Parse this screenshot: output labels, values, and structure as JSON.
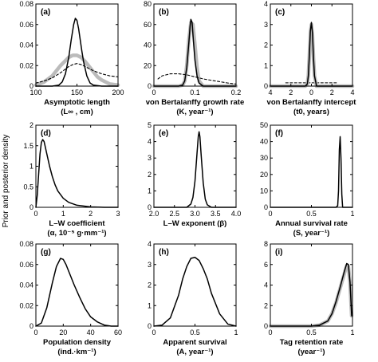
{
  "figure": {
    "ylabel": "Prior and posterior density"
  },
  "chart_data": [
    {
      "type": "line",
      "panel": "(a)",
      "xlabel_line1": "Asymptotic length",
      "xlabel_line2": "(L∞ , cm)",
      "xlim": [
        100,
        200
      ],
      "ylim": [
        0,
        0.08
      ],
      "xticks": [
        100,
        150,
        200
      ],
      "xtick_labels": [
        "100",
        "150",
        "200"
      ],
      "yticks": [
        0,
        0.02,
        0.04,
        0.06,
        0.08
      ],
      "ytick_labels": [
        "0",
        "0.02",
        "0.04",
        "0.06",
        "0.08"
      ],
      "series": [
        {
          "style": "posterior-gray",
          "x": [
            100,
            110,
            120,
            125,
            130,
            135,
            140,
            145,
            150,
            155,
            160,
            165,
            170,
            175,
            180,
            190,
            200
          ],
          "y": [
            0.001,
            0.004,
            0.01,
            0.015,
            0.02,
            0.024,
            0.028,
            0.03,
            0.03,
            0.028,
            0.024,
            0.019,
            0.014,
            0.009,
            0.006,
            0.002,
            0.001
          ]
        },
        {
          "style": "prior-dashed",
          "x": [
            100,
            110,
            120,
            130,
            140,
            145,
            150,
            155,
            160,
            170,
            180,
            190,
            200
          ],
          "y": [
            0.003,
            0.005,
            0.008,
            0.013,
            0.019,
            0.021,
            0.022,
            0.021,
            0.019,
            0.015,
            0.012,
            0.01,
            0.009
          ]
        },
        {
          "style": "posterior-black",
          "x": [
            100,
            120,
            128,
            132,
            136,
            140,
            143,
            146,
            148,
            150,
            152,
            154,
            156,
            158,
            162,
            166,
            170,
            180,
            200
          ],
          "y": [
            0,
            0,
            0.001,
            0.004,
            0.012,
            0.028,
            0.045,
            0.06,
            0.066,
            0.064,
            0.056,
            0.045,
            0.034,
            0.024,
            0.01,
            0.003,
            0.001,
            0,
            0
          ]
        }
      ]
    },
    {
      "type": "line",
      "panel": "(b)",
      "xlabel_line1": "von Bertalanffy growth rate",
      "xlabel_line2": "(K, year⁻¹)",
      "xlim": [
        0,
        0.2
      ],
      "ylim": [
        0,
        80
      ],
      "xticks": [
        0,
        0.1,
        0.2
      ],
      "xtick_labels": [
        "0",
        "0.1",
        "0.2"
      ],
      "yticks": [
        0,
        20,
        40,
        60,
        80
      ],
      "ytick_labels": [
        "0",
        "20",
        "40",
        "60",
        "80"
      ],
      "series": [
        {
          "style": "posterior-gray",
          "x": [
            0,
            0.06,
            0.07,
            0.075,
            0.08,
            0.085,
            0.09,
            0.095,
            0.1,
            0.105,
            0.11,
            0.12,
            0.2
          ],
          "y": [
            0,
            0,
            1,
            5,
            20,
            45,
            62,
            60,
            40,
            18,
            5,
            0,
            0
          ]
        },
        {
          "style": "prior-dashed",
          "x": [
            0.01,
            0.02,
            0.04,
            0.06,
            0.08,
            0.1,
            0.12,
            0.15,
            0.18,
            0.2
          ],
          "y": [
            7,
            10,
            12,
            12,
            11,
            9,
            7,
            5,
            3,
            2
          ]
        },
        {
          "style": "posterior-black",
          "x": [
            0,
            0.06,
            0.07,
            0.075,
            0.08,
            0.085,
            0.088,
            0.09,
            0.093,
            0.096,
            0.1,
            0.105,
            0.11,
            0.12,
            0.2
          ],
          "y": [
            0,
            0,
            1,
            5,
            18,
            42,
            58,
            65,
            62,
            45,
            25,
            10,
            3,
            0,
            0
          ]
        }
      ]
    },
    {
      "type": "line",
      "panel": "(c)",
      "xlabel_line1": "von Bertalanffy intercept",
      "xlabel_line2": "(t0, years)",
      "xlim": [
        -4,
        4
      ],
      "ylim": [
        0,
        4
      ],
      "xticks": [
        -4,
        -2,
        0,
        2,
        4
      ],
      "xtick_labels": [
        "4",
        "2",
        "0",
        "2",
        "4"
      ],
      "yticks": [
        0,
        1,
        2,
        3,
        4
      ],
      "ytick_labels": [
        "0",
        "1",
        "2",
        "3",
        "4"
      ],
      "series": [
        {
          "style": "prior-dashed",
          "x": [
            -2.5,
            2.5
          ],
          "y": [
            0.16,
            0.16
          ]
        },
        {
          "style": "posterior-gray",
          "x": [
            -4,
            -0.6,
            -0.4,
            -0.3,
            -0.2,
            -0.1,
            0,
            0.1,
            0.2,
            0.3,
            0.5,
            4
          ],
          "y": [
            0,
            0,
            0.1,
            0.5,
            1.5,
            2.6,
            3.0,
            2.5,
            1.4,
            0.5,
            0,
            0
          ]
        },
        {
          "style": "posterior-black",
          "x": [
            -4,
            -0.6,
            -0.4,
            -0.3,
            -0.2,
            -0.1,
            0,
            0.1,
            0.2,
            0.3,
            0.5,
            4
          ],
          "y": [
            0,
            0,
            0.1,
            0.5,
            1.5,
            2.7,
            3.1,
            2.6,
            1.4,
            0.5,
            0,
            0
          ]
        }
      ]
    },
    {
      "type": "line",
      "panel": "(d)",
      "xlabel_line1": "L–W coefficient",
      "xlabel_line2": "(α, 10⁻⁵ g·mm⁻¹)",
      "xlim": [
        0,
        3
      ],
      "ylim": [
        0,
        2
      ],
      "xticks": [
        0,
        1,
        2,
        3
      ],
      "xtick_labels": [
        "0",
        "1",
        "2",
        "3"
      ],
      "yticks": [
        0,
        0.5,
        1,
        1.5,
        2
      ],
      "ytick_labels": [
        "0",
        "0.5",
        "1",
        "1.5",
        "2"
      ],
      "series": [
        {
          "style": "posterior-black",
          "x": [
            0,
            0.05,
            0.1,
            0.15,
            0.2,
            0.25,
            0.3,
            0.35,
            0.4,
            0.5,
            0.6,
            0.7,
            0.8,
            1.0,
            1.2,
            1.5,
            2.0,
            2.5,
            3.0
          ],
          "y": [
            0,
            0.3,
            0.8,
            1.3,
            1.58,
            1.65,
            1.6,
            1.45,
            1.3,
            1.0,
            0.75,
            0.55,
            0.4,
            0.22,
            0.12,
            0.05,
            0.01,
            0,
            0
          ]
        }
      ]
    },
    {
      "type": "line",
      "panel": "(e)",
      "xlabel_line1": "L–W exponent (β)",
      "xlabel_line2": "",
      "xlim": [
        2.0,
        4.0
      ],
      "ylim": [
        0,
        5
      ],
      "xticks": [
        2.0,
        2.5,
        3.0,
        3.5,
        4.0
      ],
      "xtick_labels": [
        "2.0",
        "2.5",
        "3.0",
        "3.5",
        "4.0"
      ],
      "yticks": [
        0,
        1,
        2,
        3,
        4,
        5
      ],
      "ytick_labels": [
        "0",
        "1",
        "2",
        "3",
        "4",
        "5"
      ],
      "series": [
        {
          "style": "posterior-black",
          "x": [
            2.0,
            2.8,
            2.9,
            2.95,
            3.0,
            3.05,
            3.08,
            3.1,
            3.12,
            3.15,
            3.2,
            3.25,
            3.3,
            3.4,
            4.0
          ],
          "y": [
            0,
            0,
            0.2,
            0.6,
            1.6,
            3.3,
            4.3,
            4.6,
            4.3,
            3.2,
            1.5,
            0.5,
            0.15,
            0,
            0
          ]
        }
      ]
    },
    {
      "type": "line",
      "panel": "(f)",
      "xlabel_line1": "Annual survival rate",
      "xlabel_line2": "(S, year⁻¹)",
      "xlim": [
        0,
        1
      ],
      "ylim": [
        0,
        50
      ],
      "xticks": [
        0,
        0.5,
        1
      ],
      "xtick_labels": [
        "0",
        "0.5",
        "1"
      ],
      "yticks": [
        0,
        10,
        20,
        30,
        40,
        50
      ],
      "ytick_labels": [
        "0",
        "10",
        "20",
        "30",
        "40",
        "50"
      ],
      "series": [
        {
          "style": "posterior-black",
          "x": [
            0,
            0.8,
            0.82,
            0.83,
            0.84,
            0.85,
            0.86,
            0.87,
            0.88,
            1
          ],
          "y": [
            0,
            0,
            1,
            10,
            35,
            43,
            30,
            8,
            0,
            0
          ]
        }
      ]
    },
    {
      "type": "line",
      "panel": "(g)",
      "xlabel_line1": "Population density",
      "xlabel_line2": "(ind.·km⁻¹)",
      "xlim": [
        0,
        60
      ],
      "ylim": [
        0,
        0.08
      ],
      "xticks": [
        0,
        20,
        40,
        60
      ],
      "xtick_labels": [
        "0",
        "20",
        "40",
        "60"
      ],
      "yticks": [
        0,
        0.02,
        0.04,
        0.06,
        0.08
      ],
      "ytick_labels": [
        "0",
        "0.02",
        "0.04",
        "0.06",
        "0.08"
      ],
      "series": [
        {
          "style": "posterior-black",
          "x": [
            0,
            4,
            8,
            12,
            15,
            18,
            20,
            22,
            25,
            28,
            32,
            36,
            40,
            45,
            50,
            55,
            60
          ],
          "y": [
            0,
            0.003,
            0.018,
            0.042,
            0.058,
            0.066,
            0.065,
            0.06,
            0.05,
            0.04,
            0.028,
            0.017,
            0.009,
            0.004,
            0.001,
            0,
            0
          ]
        }
      ]
    },
    {
      "type": "line",
      "panel": "(h)",
      "xlabel_line1": "Apparent survival",
      "xlabel_line2": "(A, year⁻¹)",
      "xlim": [
        0,
        1
      ],
      "ylim": [
        0,
        4
      ],
      "xticks": [
        0,
        0.5,
        1
      ],
      "xtick_labels": [
        "0",
        "0.5",
        "1"
      ],
      "yticks": [
        0,
        1,
        2,
        3,
        4
      ],
      "ytick_labels": [
        "0",
        "1",
        "2",
        "3",
        "4"
      ],
      "series": [
        {
          "style": "posterior-black",
          "x": [
            0,
            0.1,
            0.2,
            0.3,
            0.35,
            0.4,
            0.45,
            0.5,
            0.55,
            0.6,
            0.65,
            0.7,
            0.8,
            0.9,
            1.0
          ],
          "y": [
            0,
            0.05,
            0.4,
            1.5,
            2.3,
            2.9,
            3.3,
            3.35,
            3.2,
            2.8,
            2.3,
            1.6,
            0.6,
            0.1,
            0
          ]
        }
      ]
    },
    {
      "type": "line",
      "panel": "(i)",
      "xlabel_line1": "Tag retention rate",
      "xlabel_line2": "(year⁻¹)",
      "xlim": [
        0,
        1
      ],
      "ylim": [
        0,
        8
      ],
      "xticks": [
        0,
        0.5,
        1
      ],
      "xtick_labels": [
        "0",
        "0.5",
        "1"
      ],
      "yticks": [
        0,
        2,
        4,
        6,
        8
      ],
      "ytick_labels": [
        "0",
        "2",
        "4",
        "6",
        "8"
      ],
      "series": [
        {
          "style": "posterior-gray",
          "x": [
            0,
            0.5,
            0.6,
            0.7,
            0.75,
            0.8,
            0.85,
            0.9,
            0.93,
            0.95,
            0.97,
            0.99
          ],
          "y": [
            0,
            0,
            0.1,
            0.5,
            1.2,
            2.3,
            3.7,
            5.1,
            5.9,
            5.8,
            4.2,
            1.0
          ]
        },
        {
          "style": "posterior-black",
          "x": [
            0,
            0.5,
            0.6,
            0.7,
            0.75,
            0.8,
            0.85,
            0.9,
            0.93,
            0.95,
            0.97,
            0.99
          ],
          "y": [
            0,
            0,
            0.1,
            0.5,
            1.2,
            2.4,
            3.8,
            5.3,
            6.1,
            6.0,
            4.3,
            1.0
          ]
        }
      ]
    }
  ]
}
